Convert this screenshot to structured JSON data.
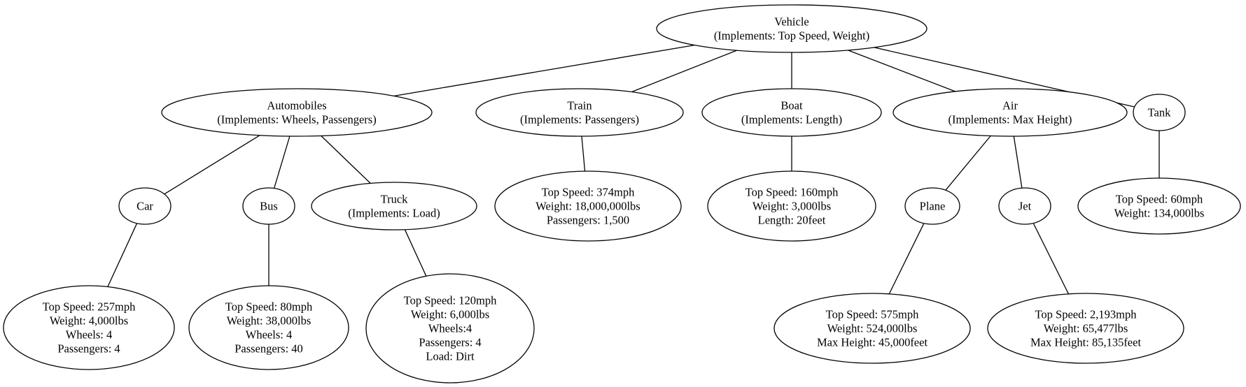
{
  "nodes": {
    "vehicle": [
      "Vehicle",
      "(Implements: Top Speed, Weight)"
    ],
    "automobiles": [
      "Automobiles",
      "(Implements: Wheels, Passengers)"
    ],
    "train": [
      "Train",
      "(Implements: Passengers)"
    ],
    "boat": [
      "Boat",
      "(Implements: Length)"
    ],
    "air": [
      "Air",
      "(Implements: Max Height)"
    ],
    "tank": [
      "Tank"
    ],
    "car": [
      "Car"
    ],
    "bus": [
      "Bus"
    ],
    "truck": [
      "Truck",
      "(Implements: Load)"
    ],
    "train_specs": [
      "Top Speed: 374mph",
      "Weight: 18,000,000lbs",
      "Passengers: 1,500"
    ],
    "boat_specs": [
      "Top Speed: 160mph",
      "Weight: 3,000lbs",
      "Length: 20feet"
    ],
    "plane": [
      "Plane"
    ],
    "jet": [
      "Jet"
    ],
    "tank_specs": [
      "Top Speed: 60mph",
      "Weight: 134,000lbs"
    ],
    "car_specs": [
      "Top Speed: 257mph",
      "Weight: 4,000lbs",
      "Wheels: 4",
      "Passengers: 4"
    ],
    "bus_specs": [
      "Top Speed: 80mph",
      "Weight: 38,000lbs",
      "Wheels: 4",
      "Passengers: 40"
    ],
    "truck_specs": [
      "Top Speed: 120mph",
      "Weight: 6,000lbs",
      "Wheels:4",
      "Passengers: 4",
      "Load: Dirt"
    ],
    "plane_specs": [
      "Top Speed: 575mph",
      "Weight: 524,000lbs",
      "Max Height: 45,000feet"
    ],
    "jet_specs": [
      "Top Speed: 2,193mph",
      "Weight: 65,477lbs",
      "Max Height: 85,135feet"
    ]
  },
  "edges": [
    [
      "vehicle",
      "automobiles"
    ],
    [
      "vehicle",
      "train"
    ],
    [
      "vehicle",
      "boat"
    ],
    [
      "vehicle",
      "air"
    ],
    [
      "vehicle",
      "tank"
    ],
    [
      "automobiles",
      "car"
    ],
    [
      "automobiles",
      "bus"
    ],
    [
      "automobiles",
      "truck"
    ],
    [
      "train",
      "train_specs"
    ],
    [
      "boat",
      "boat_specs"
    ],
    [
      "air",
      "plane"
    ],
    [
      "air",
      "jet"
    ],
    [
      "tank",
      "tank_specs"
    ],
    [
      "car",
      "car_specs"
    ],
    [
      "bus",
      "bus_specs"
    ],
    [
      "truck",
      "truck_specs"
    ],
    [
      "plane",
      "plane_specs"
    ],
    [
      "jet",
      "jet_specs"
    ]
  ]
}
